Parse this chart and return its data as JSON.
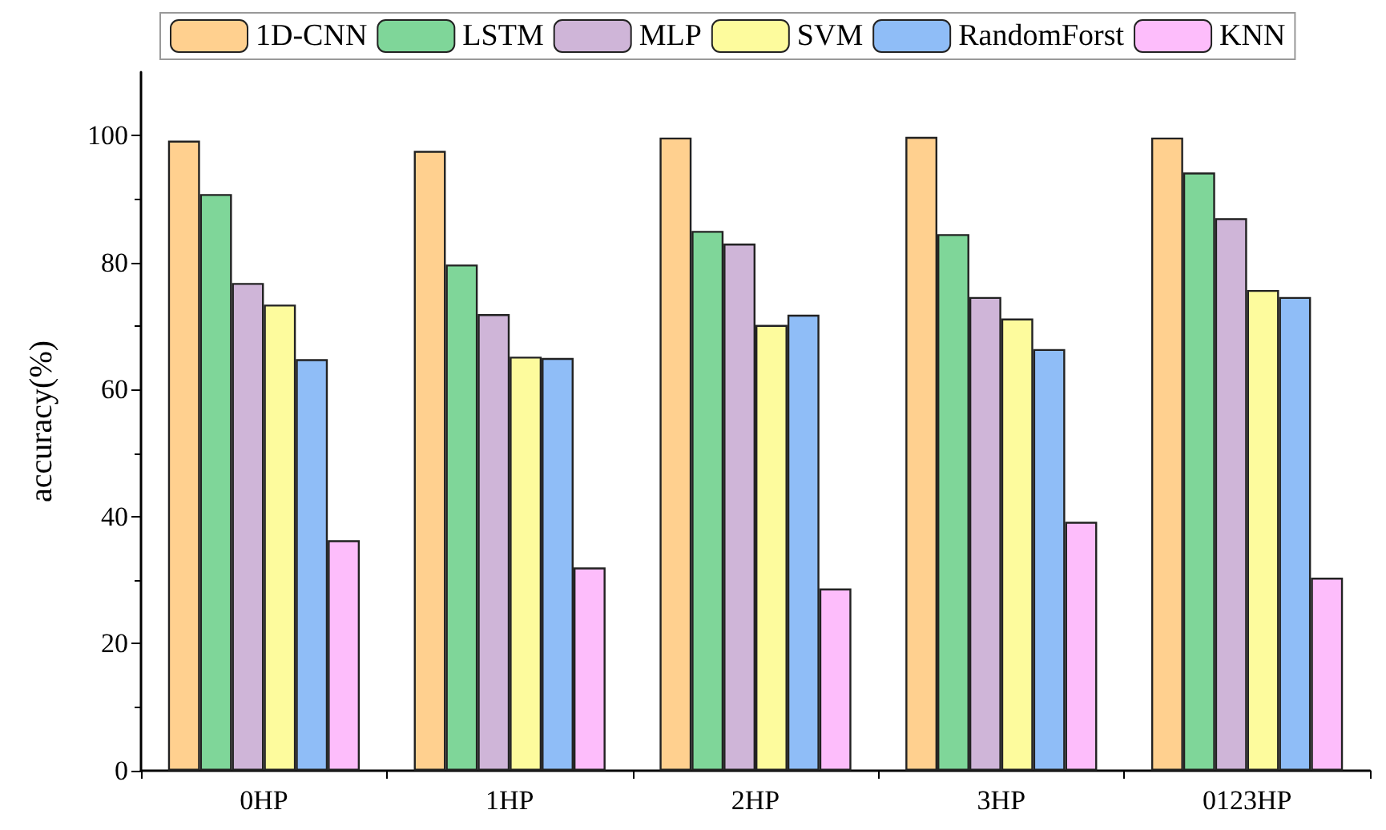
{
  "chart_data": {
    "type": "bar",
    "ylabel": "accuracy(%)",
    "categories": [
      "0HP",
      "1HP",
      "2HP",
      "3HP",
      "0123HP"
    ],
    "series": [
      {
        "name": "1D-CNN",
        "color": "#ffd08f",
        "values": [
          99.2,
          97.6,
          99.7,
          99.8,
          99.7
        ]
      },
      {
        "name": "LSTM",
        "color": "#7fd699",
        "values": [
          90.8,
          79.7,
          85.0,
          84.5,
          94.2
        ]
      },
      {
        "name": "MLP",
        "color": "#cfb5d8",
        "values": [
          76.8,
          71.9,
          83.0,
          74.6,
          87.0
        ]
      },
      {
        "name": "SVM",
        "color": "#fdfb9d",
        "values": [
          73.4,
          65.2,
          70.2,
          71.2,
          75.7
        ]
      },
      {
        "name": "RandomForst",
        "color": "#8fbdf7",
        "values": [
          64.8,
          65.0,
          71.8,
          66.4,
          74.6
        ]
      },
      {
        "name": "KNN",
        "color": "#fdbdfb",
        "values": [
          36.3,
          32.0,
          28.7,
          39.2,
          30.4
        ]
      }
    ],
    "ylim": [
      0,
      110
    ],
    "yticks": [
      0,
      20,
      40,
      60,
      80,
      100
    ],
    "grid": false,
    "legend": "top"
  }
}
